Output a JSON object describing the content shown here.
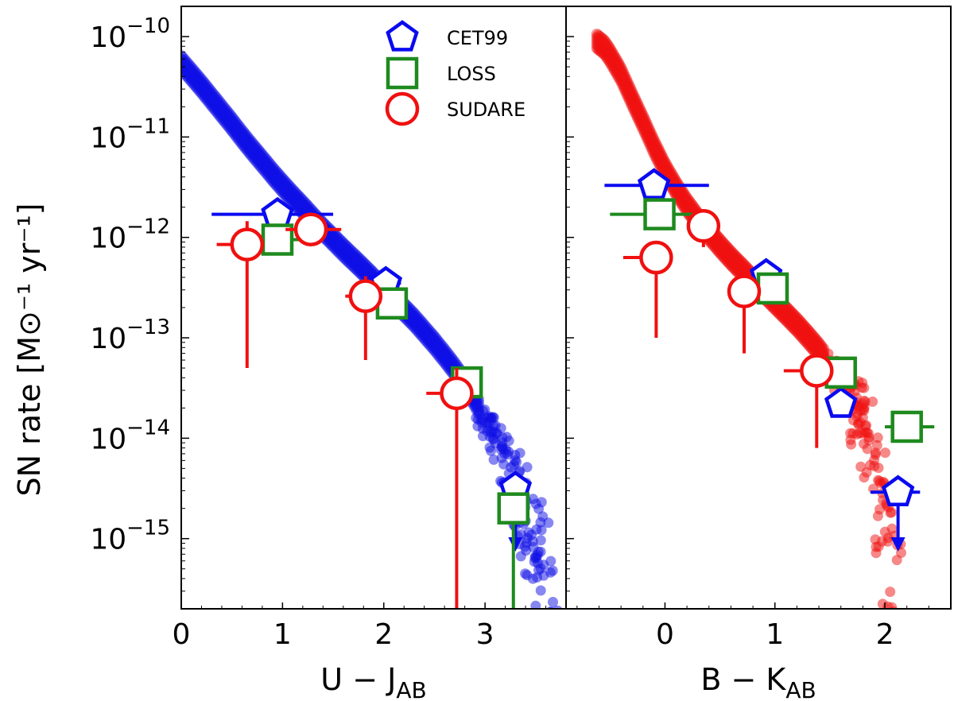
{
  "chart_data": {
    "type": "scatter",
    "ylabel": "SN rate [M⊙⁻¹ yr⁻¹]",
    "yscale": "log",
    "ylim": [
      2e-16,
      2e-10
    ],
    "yticks": [
      1e-10,
      1e-11,
      1e-12,
      1e-13,
      1e-14,
      1e-15
    ],
    "yticklabels": [
      {
        "base": "10",
        "exp": "−10"
      },
      {
        "base": "10",
        "exp": "−11"
      },
      {
        "base": "10",
        "exp": "−12"
      },
      {
        "base": "10",
        "exp": "−13"
      },
      {
        "base": "10",
        "exp": "−14"
      },
      {
        "base": "10",
        "exp": "−15"
      }
    ],
    "legend": {
      "position": "top-center",
      "entries": [
        {
          "label": "CET99",
          "marker": "pentagon",
          "color": "#0a0af0"
        },
        {
          "label": "LOSS",
          "marker": "square",
          "color": "#1e8a1e"
        },
        {
          "label": "SUDARE",
          "marker": "circle",
          "color": "#f01010"
        }
      ]
    },
    "panels": [
      {
        "name": "u-j",
        "xlabel": {
          "main": "U − J",
          "sub": "AB"
        },
        "xlim": [
          0,
          3.8
        ],
        "xticks": [
          0,
          1,
          2,
          3
        ],
        "xticklabels": [
          "0",
          "1",
          "2",
          "3"
        ],
        "model": {
          "color": "#1010e6",
          "curve": [
            [
              0.0,
              5.5e-11
            ],
            [
              0.1,
              4.2e-11
            ],
            [
              0.2,
              3.2e-11
            ],
            [
              0.3,
              2.4e-11
            ],
            [
              0.4,
              1.8e-11
            ],
            [
              0.5,
              1.35e-11
            ],
            [
              0.6,
              1e-11
            ],
            [
              0.7,
              7.5e-12
            ],
            [
              0.8,
              5.7e-12
            ],
            [
              0.9,
              4.3e-12
            ],
            [
              1.0,
              3.3e-12
            ],
            [
              1.1,
              2.55e-12
            ],
            [
              1.2,
              2e-12
            ],
            [
              1.3,
              1.55e-12
            ],
            [
              1.4,
              1.2e-12
            ],
            [
              1.5,
              9.5e-13
            ],
            [
              1.6,
              7.5e-13
            ],
            [
              1.7,
              6e-13
            ],
            [
              1.8,
              4.8e-13
            ],
            [
              1.9,
              3.8e-13
            ],
            [
              2.0,
              3e-13
            ],
            [
              2.1,
              2.4e-13
            ],
            [
              2.2,
              1.9e-13
            ],
            [
              2.3,
              1.5e-13
            ],
            [
              2.4,
              1.15e-13
            ],
            [
              2.5,
              8.8e-14
            ],
            [
              2.6,
              6.6e-14
            ],
            [
              2.7,
              4.9e-14
            ],
            [
              2.8,
              3.5e-14
            ],
            [
              2.9,
              2.4e-14
            ],
            [
              3.0,
              1.6e-14
            ],
            [
              3.1,
              1e-14
            ],
            [
              3.2,
              6e-15
            ],
            [
              3.3,
              3.4e-15
            ],
            [
              3.4,
              1.8e-15
            ],
            [
              3.5,
              9e-16
            ],
            [
              3.6,
              4e-16
            ],
            [
              3.65,
              2.5e-16
            ]
          ],
          "band_dex": 0.07,
          "scatter_from_x": 2.95
        },
        "series": [
          {
            "name": "CET99",
            "points": [
              {
                "x": 0.95,
                "y": 1.7e-12,
                "xerr": [
                  0.65,
                  0.55
                ],
                "yerr": null,
                "upper_limit": false
              },
              {
                "x": 2.02,
                "y": 3.5e-13,
                "xerr": [
                  0.0,
                  0.15
                ],
                "yerr": null,
                "upper_limit": false
              },
              {
                "x": 3.3,
                "y": 3.2e-15,
                "xerr": null,
                "yerr": null,
                "upper_limit": true,
                "arrow_to": 8e-16
              }
            ]
          },
          {
            "name": "LOSS",
            "points": [
              {
                "x": 0.95,
                "y": 9.5e-13,
                "xerr": [
                  0.3,
                  0.4
                ],
                "yerr": null,
                "upper_limit": false
              },
              {
                "x": 2.08,
                "y": 2.2e-13,
                "xerr": null,
                "yerr": null,
                "upper_limit": false
              },
              {
                "x": 2.82,
                "y": 3.6e-14,
                "xerr": [
                  0.1,
                  0.05
                ],
                "yerr": null,
                "upper_limit": false
              },
              {
                "x": 3.28,
                "y": 2e-15,
                "xerr": [
                  0.1,
                  0.0
                ],
                "yerr": [
                  2e-15,
                  0.0
                ],
                "upper_limit": false
              }
            ]
          },
          {
            "name": "SUDARE",
            "points": [
              {
                "x": 0.65,
                "y": 8.5e-13,
                "xerr": [
                  0.3,
                  0.0
                ],
                "yerr": [
                  8e-13,
                  6e-13
                ],
                "upper_limit": false
              },
              {
                "x": 1.28,
                "y": 1.2e-12,
                "xerr": [
                  0.25,
                  0.3
                ],
                "yerr": [
                  3.5e-13,
                  0.0
                ],
                "upper_limit": false
              },
              {
                "x": 1.82,
                "y": 2.6e-13,
                "xerr": [
                  0.2,
                  0.0
                ],
                "yerr": [
                  2e-13,
                  1.5e-13
                ],
                "upper_limit": false
              },
              {
                "x": 2.72,
                "y": 2.8e-14,
                "xerr": [
                  0.3,
                  0.0
                ],
                "yerr": [
                  2.78e-14,
                  2.2e-14
                ],
                "upper_limit": false
              }
            ]
          }
        ]
      },
      {
        "name": "b-k",
        "xlabel": {
          "main": "B − K",
          "sub": "AB"
        },
        "xlim": [
          -0.9,
          2.6
        ],
        "xticks": [
          0,
          1,
          2
        ],
        "xticklabels": [
          "0",
          "1",
          "2"
        ],
        "model": {
          "color": "#f01212",
          "curve": [
            [
              -0.62,
              9e-11
            ],
            [
              -0.55,
              7.8e-11
            ],
            [
              -0.5,
              6.5e-11
            ],
            [
              -0.4,
              4.2e-11
            ],
            [
              -0.3,
              2.4e-11
            ],
            [
              -0.2,
              1.4e-11
            ],
            [
              -0.1,
              8e-12
            ],
            [
              0.0,
              4.8e-12
            ],
            [
              0.1,
              3.1e-12
            ],
            [
              0.2,
              2.1e-12
            ],
            [
              0.3,
              1.5e-12
            ],
            [
              0.4,
              1.1e-12
            ],
            [
              0.5,
              8.2e-13
            ],
            [
              0.6,
              6.2e-13
            ],
            [
              0.7,
              4.8e-13
            ],
            [
              0.8,
              3.7e-13
            ],
            [
              0.9,
              2.9e-13
            ],
            [
              1.0,
              2.25e-13
            ],
            [
              1.1,
              1.75e-13
            ],
            [
              1.2,
              1.35e-13
            ],
            [
              1.3,
              1.02e-13
            ],
            [
              1.4,
              7.6e-14
            ],
            [
              1.5,
              5.5e-14
            ],
            [
              1.6,
              3.8e-14
            ],
            [
              1.7,
              2.5e-14
            ],
            [
              1.8,
              1.5e-14
            ],
            [
              1.85,
              1e-14
            ],
            [
              1.9,
              6e-15
            ],
            [
              1.95,
              3e-15
            ],
            [
              2.0,
              1.3e-15
            ],
            [
              2.05,
              5e-16
            ],
            [
              2.1,
              2.5e-16
            ]
          ],
          "band_dex": 0.07,
          "scatter_from_x": 1.45
        },
        "series": [
          {
            "name": "CET99",
            "points": [
              {
                "x": -0.1,
                "y": 3.3e-12,
                "xerr": [
                  0.45,
                  0.5
                ],
                "yerr": null,
                "upper_limit": false
              },
              {
                "x": 0.92,
                "y": 4.2e-13,
                "xerr": [
                  0.0,
                  0.12
                ],
                "yerr": null,
                "upper_limit": false
              },
              {
                "x": 1.6,
                "y": 2.2e-14,
                "xerr": null,
                "yerr": null,
                "upper_limit": false
              },
              {
                "x": 2.12,
                "y": 2.9e-15,
                "xerr": [
                  0.25,
                  0.2
                ],
                "yerr": null,
                "upper_limit": true,
                "arrow_to": 8e-16
              }
            ]
          },
          {
            "name": "LOSS",
            "points": [
              {
                "x": -0.05,
                "y": 1.7e-12,
                "xerr": [
                  0.45,
                  0.3
                ],
                "yerr": null,
                "upper_limit": false
              },
              {
                "x": 0.98,
                "y": 3.1e-13,
                "xerr": [
                  0.2,
                  0.0
                ],
                "yerr": null,
                "upper_limit": false
              },
              {
                "x": 1.6,
                "y": 4.5e-14,
                "xerr": [
                  0.2,
                  0.1
                ],
                "yerr": null,
                "upper_limit": false
              },
              {
                "x": 2.2,
                "y": 1.3e-14,
                "xerr": [
                  0.2,
                  0.25
                ],
                "yerr": null,
                "upper_limit": false
              }
            ]
          },
          {
            "name": "SUDARE",
            "points": [
              {
                "x": -0.08,
                "y": 6.3e-13,
                "xerr": [
                  0.3,
                  0.0
                ],
                "yerr": [
                  5.3e-13,
                  0.0
                ],
                "upper_limit": false
              },
              {
                "x": 0.35,
                "y": 1.3e-12,
                "xerr": [
                  0.0,
                  0.0
                ],
                "yerr": [
                  5e-13,
                  0.0
                ],
                "upper_limit": false
              },
              {
                "x": 0.72,
                "y": 2.9e-13,
                "xerr": [
                  0.0,
                  0.0
                ],
                "yerr": [
                  2.2e-13,
                  1.2e-13
                ],
                "upper_limit": false
              },
              {
                "x": 1.38,
                "y": 4.7e-14,
                "xerr": [
                  0.3,
                  0.0
                ],
                "yerr": [
                  3.9e-14,
                  0.0
                ],
                "upper_limit": false
              }
            ]
          }
        ]
      }
    ]
  }
}
